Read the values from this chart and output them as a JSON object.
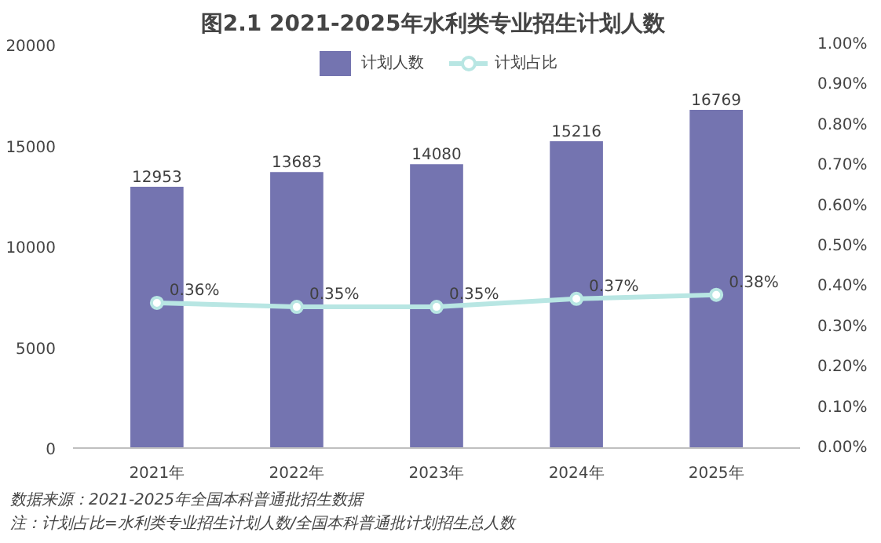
{
  "chart_data": {
    "type": "bar",
    "title": "图2.1  2021-2025年水利类专业招生计划人数",
    "categories": [
      "2021年",
      "2022年",
      "2023年",
      "2024年",
      "2025年"
    ],
    "series": [
      {
        "name": "计划人数",
        "color": "#7474b0",
        "values": [
          12953,
          13683,
          14080,
          15216,
          16769
        ],
        "value_labels": [
          "12953",
          "13683",
          "14080",
          "15216",
          "16769"
        ]
      },
      {
        "name": "计划占比",
        "type": "line",
        "axis": "y2",
        "color": "#b8e6e3",
        "marker": "circle",
        "values": [
          0.36,
          0.35,
          0.35,
          0.37,
          0.38
        ],
        "value_labels": [
          "0.36%",
          "0.35%",
          "0.35%",
          "0.37%",
          "0.38%"
        ]
      }
    ],
    "ylim": [
      0,
      20000
    ],
    "yticks": [
      0,
      5000,
      10000,
      15000,
      20000
    ],
    "y2lim": [
      0,
      1.0
    ],
    "y2ticks": [
      {
        "value": 0,
        "label": "0.00%"
      },
      {
        "value": 0.1,
        "label": "0.10%"
      },
      {
        "value": 0.2,
        "label": "0.20%"
      },
      {
        "value": 0.3,
        "label": "0.30%"
      },
      {
        "value": 0.4,
        "label": "0.40%"
      },
      {
        "value": 0.5,
        "label": "0.50%"
      },
      {
        "value": 0.6,
        "label": "0.60%"
      },
      {
        "value": 0.7,
        "label": "0.70%"
      },
      {
        "value": 0.8,
        "label": "0.80%"
      },
      {
        "value": 0.9,
        "label": "0.90%"
      },
      {
        "value": 1.0,
        "label": "1.00%"
      }
    ],
    "legend": "top",
    "annotations": [
      "数据来源：2021-2025年全国本科普通批招生数据",
      "注：计划占比=水利类专业招生计划人数/全国本科普通批计划招生总人数"
    ]
  }
}
